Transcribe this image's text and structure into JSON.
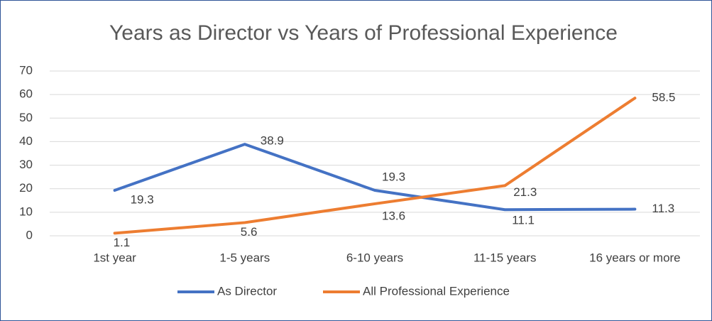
{
  "chart_data": {
    "type": "line",
    "title": "Years as Director vs Years of Professional Experience",
    "categories": [
      "1st year",
      "1-5 years",
      "6-10 years",
      "11-15 years",
      "16 years or more"
    ],
    "series": [
      {
        "name": "As Director",
        "color": "#4472c4",
        "values": [
          19.3,
          38.9,
          19.3,
          11.1,
          11.3
        ]
      },
      {
        "name": "All Professional Experience",
        "color": "#ed7d31",
        "values": [
          1.1,
          5.6,
          13.6,
          21.3,
          58.5
        ]
      }
    ],
    "ylim": [
      0,
      70
    ],
    "yticks": [
      0,
      10,
      20,
      30,
      40,
      50,
      60,
      70
    ],
    "grid": true,
    "legend": "bottom"
  }
}
